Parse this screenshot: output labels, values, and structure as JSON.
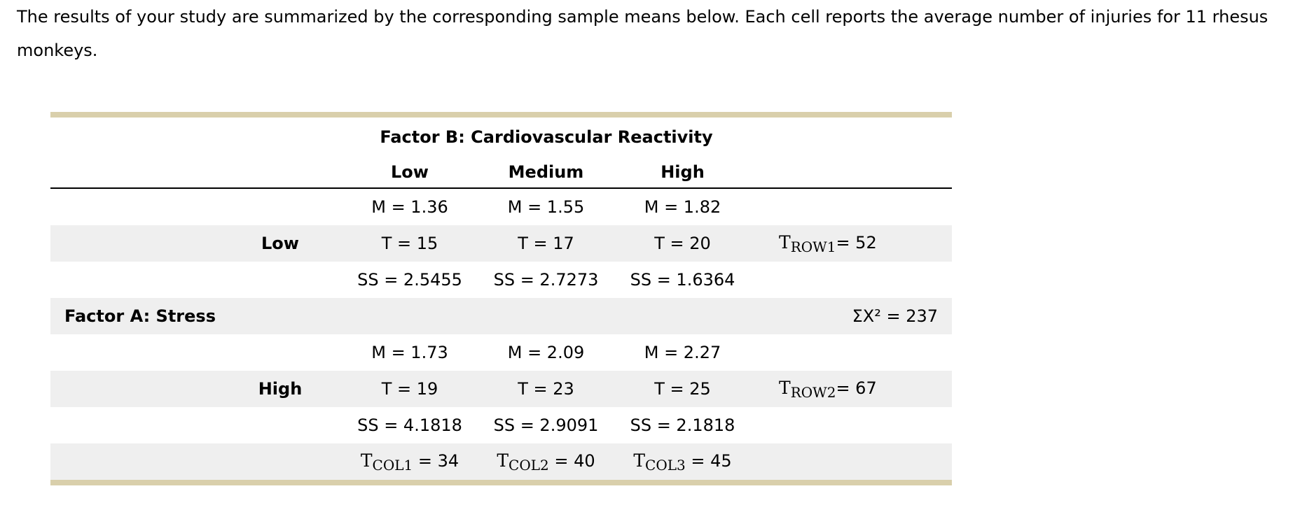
{
  "intro_text": "The results of your study are summarized by the corresponding sample means below. Each cell reports the average number of injuries for 11 rhesus monkeys.",
  "colors": {
    "rule": "#d9cfab",
    "shade": "#efefef"
  },
  "table": {
    "factor_b_title": "Factor B: Cardiovascular Reactivity",
    "factor_a_label": "Factor A: Stress",
    "col_headers": [
      "Low",
      "Medium",
      "High"
    ],
    "sum_x2": "ΣX² = 237",
    "rows": [
      {
        "label": "Low",
        "m": [
          "M = 1.36",
          "M = 1.55",
          "M = 1.82"
        ],
        "t": [
          "T = 15",
          "T = 17",
          "T = 20"
        ],
        "ss": [
          "SS = 2.5455",
          "SS = 2.7273",
          "SS = 1.6364"
        ],
        "total_t": "T",
        "total_sub": "ROW1",
        "total_val": "= 52"
      },
      {
        "label": "High",
        "m": [
          "M = 1.73",
          "M = 2.09",
          "M = 2.27"
        ],
        "t": [
          "T = 19",
          "T = 23",
          "T = 25"
        ],
        "ss": [
          "SS = 4.1818",
          "SS = 2.9091",
          "SS = 2.1818"
        ],
        "total_t": "T",
        "total_sub": "ROW2",
        "total_val": "= 67"
      }
    ],
    "col_totals": [
      {
        "t": "T",
        "sub": "COL1",
        "val": " = 34"
      },
      {
        "t": "T",
        "sub": "COL2",
        "val": " = 40"
      },
      {
        "t": "T",
        "sub": "COL3",
        "val": " = 45"
      }
    ]
  }
}
